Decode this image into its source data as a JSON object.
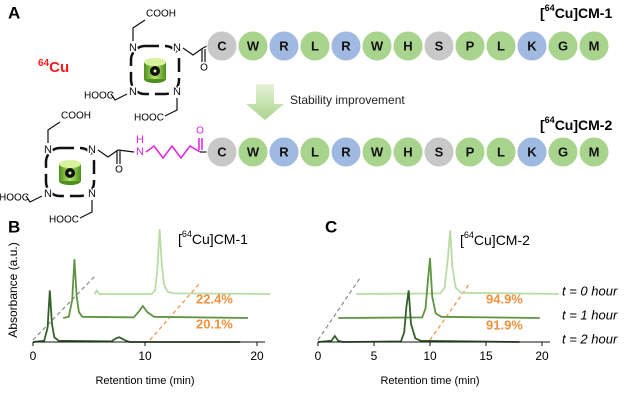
{
  "panel_a": {
    "label": "A",
    "isotope": {
      "sup": "64",
      "text": "Cu"
    },
    "structure": {
      "acid": "COOH",
      "acid_left": "HOOC",
      "amine": "N",
      "oxygen": "O",
      "hydrogen": "H"
    },
    "arrow_label": "Stability improvement",
    "conjugates": [
      {
        "name": {
          "pre": "[",
          "sup": "64",
          "post": "Cu]CM-1"
        },
        "residues": [
          {
            "letter": "C",
            "color": "#c8c8c8"
          },
          {
            "letter": "W",
            "color": "#a9d48d"
          },
          {
            "letter": "R",
            "color": "#9fb9e0"
          },
          {
            "letter": "L",
            "color": "#a9d48d"
          },
          {
            "letter": "R",
            "color": "#9fb9e0"
          },
          {
            "letter": "W",
            "color": "#a9d48d"
          },
          {
            "letter": "H",
            "color": "#a9d48d"
          },
          {
            "letter": "S",
            "color": "#c8c8c8"
          },
          {
            "letter": "P",
            "color": "#a9d48d"
          },
          {
            "letter": "L",
            "color": "#a9d48d"
          },
          {
            "letter": "K",
            "color": "#9fb9e0"
          },
          {
            "letter": "G",
            "color": "#a9d48d"
          },
          {
            "letter": "M",
            "color": "#a9d48d"
          }
        ]
      },
      {
        "name": {
          "pre": "[",
          "sup": "64",
          "post": "Cu]CM-2"
        },
        "residues": [
          {
            "letter": "C",
            "color": "#c8c8c8"
          },
          {
            "letter": "W",
            "color": "#a9d48d"
          },
          {
            "letter": "R",
            "color": "#9fb9e0"
          },
          {
            "letter": "L",
            "color": "#a9d48d"
          },
          {
            "letter": "R",
            "color": "#9fb9e0"
          },
          {
            "letter": "W",
            "color": "#a9d48d"
          },
          {
            "letter": "H",
            "color": "#a9d48d"
          },
          {
            "letter": "S",
            "color": "#c8c8c8"
          },
          {
            "letter": "P",
            "color": "#a9d48d"
          },
          {
            "letter": "L",
            "color": "#a9d48d"
          },
          {
            "letter": "K",
            "color": "#9fb9e0"
          },
          {
            "letter": "G",
            "color": "#a9d48d"
          },
          {
            "letter": "M",
            "color": "#a9d48d"
          }
        ]
      }
    ]
  },
  "chart_data": [
    {
      "type": "line",
      "panel": "B",
      "title": {
        "pre": "[",
        "sup": "64",
        "post": "Cu]CM-1"
      },
      "xlabel": "Retention time (min)",
      "ylabel": "Absorbance (a.u.)",
      "xlim": [
        0,
        20
      ],
      "xticks": [
        0,
        10,
        20
      ],
      "ylim": [
        0,
        100
      ],
      "series": [
        {
          "color": "#b9dca5",
          "x": [
            5.5,
            5.7,
            5.9,
            6.1,
            10.6,
            10.9,
            11.1,
            11.3,
            11.5,
            11.7,
            12.0,
            12.5,
            21.2
          ],
          "values": [
            0,
            3,
            0,
            0,
            0,
            3,
            20,
            54,
            25,
            8,
            2,
            0.5,
            0
          ]
        },
        {
          "color": "#5f9442",
          "x": [
            2.7,
            3.2,
            3.5,
            3.7,
            3.9,
            4.1,
            4.4,
            9.0,
            9.5,
            9.8,
            10.2,
            10.8,
            19.2
          ],
          "values": [
            0,
            1,
            15,
            49,
            18,
            5,
            1,
            0.5,
            6,
            10,
            5,
            1,
            0
          ]
        },
        {
          "color": "#34602a",
          "x": [
            0,
            1.0,
            1.3,
            1.5,
            1.7,
            1.9,
            2.3,
            7.0,
            7.4,
            7.7,
            8.1,
            8.6,
            18.5
          ],
          "values": [
            0,
            1,
            12,
            43,
            15,
            4,
            1,
            0.5,
            3,
            4,
            2,
            0,
            0
          ]
        }
      ],
      "annotations": [
        "22.4%",
        "20.1%"
      ]
    },
    {
      "type": "line",
      "panel": "C",
      "title": {
        "pre": "[",
        "sup": "64",
        "post": "Cu]CM-2"
      },
      "xlabel": "Retention time (min)",
      "xlim": [
        0,
        20
      ],
      "xticks": [
        0,
        5,
        10,
        15,
        20
      ],
      "ylim": [
        0,
        100
      ],
      "series": [
        {
          "name": "t = 0 hour",
          "color": "#b9dca5",
          "x": [
            3.4,
            10.9,
            11.3,
            11.6,
            11.8,
            12.0,
            12.3,
            12.8,
            21.5
          ],
          "values": [
            0,
            0.5,
            5,
            30,
            53,
            22,
            5,
            1,
            0
          ]
        },
        {
          "name": "t = 1 hour",
          "color": "#5f9442",
          "x": [
            1.8,
            9.3,
            9.6,
            9.8,
            10.0,
            10.2,
            10.5,
            11.0,
            19.8
          ],
          "values": [
            0,
            0.5,
            8,
            30,
            50,
            18,
            4,
            1,
            0
          ]
        },
        {
          "name": "t = 2 hour",
          "color": "#34602a",
          "x": [
            0,
            1.2,
            1.5,
            1.8,
            2.2,
            7.4,
            7.7,
            7.9,
            8.1,
            8.3,
            8.7,
            9.2,
            18
          ],
          "values": [
            0,
            1,
            5,
            1,
            0,
            0.5,
            8,
            30,
            43,
            15,
            3,
            1,
            0
          ]
        }
      ],
      "annotations": [
        "94.9%",
        "91.9%"
      ]
    }
  ]
}
